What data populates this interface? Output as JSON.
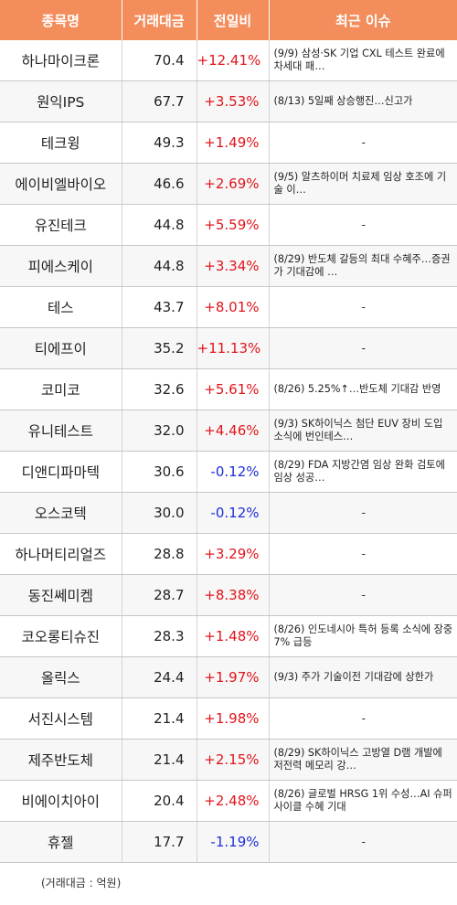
{
  "headers": [
    "종목명",
    "거래대금",
    "전일비",
    "최근 이슈"
  ],
  "rows": [
    {
      "name": "하나마이크론",
      "amount": "70.4",
      "change": "+12.41%",
      "dir": "up",
      "issue": "(9/9) 삼성·SK 기업 CXL 테스트 완료에 차세대 패…"
    },
    {
      "name": "원익IPS",
      "amount": "67.7",
      "change": "+3.53%",
      "dir": "up",
      "issue": "(8/13) 5일째 상승행진…신고가"
    },
    {
      "name": "테크윙",
      "amount": "49.3",
      "change": "+1.49%",
      "dir": "up",
      "issue": "-"
    },
    {
      "name": "에이비엘바이오",
      "amount": "46.6",
      "change": "+2.69%",
      "dir": "up",
      "issue": "(9/5) 알츠하이머 치료제 임상 호조에 기술 이…"
    },
    {
      "name": "유진테크",
      "amount": "44.8",
      "change": "+5.59%",
      "dir": "up",
      "issue": "-"
    },
    {
      "name": "피에스케이",
      "amount": "44.8",
      "change": "+3.34%",
      "dir": "up",
      "issue": "(8/29) 반도체 갈등의 최대 수혜주…증권가 기대감에 …"
    },
    {
      "name": "테스",
      "amount": "43.7",
      "change": "+8.01%",
      "dir": "up",
      "issue": "-"
    },
    {
      "name": "티에프이",
      "amount": "35.2",
      "change": "+11.13%",
      "dir": "up",
      "issue": "-"
    },
    {
      "name": "코미코",
      "amount": "32.6",
      "change": "+5.61%",
      "dir": "up",
      "issue": "(8/26) 5.25%↑…반도체 기대감 반영"
    },
    {
      "name": "유니테스트",
      "amount": "32.0",
      "change": "+4.46%",
      "dir": "up",
      "issue": "(9/3) SK하이닉스 첨단 EUV 장비 도입 소식에 번인테스…"
    },
    {
      "name": "디앤디파마텍",
      "amount": "30.6",
      "change": "-0.12%",
      "dir": "down",
      "issue": "(8/29) FDA 지방간염 임상 완화 검토에 임상 성공…"
    },
    {
      "name": "오스코텍",
      "amount": "30.0",
      "change": "-0.12%",
      "dir": "down",
      "issue": "-"
    },
    {
      "name": "하나머티리얼즈",
      "amount": "28.8",
      "change": "+3.29%",
      "dir": "up",
      "issue": "-"
    },
    {
      "name": "동진쎄미켐",
      "amount": "28.7",
      "change": "+8.38%",
      "dir": "up",
      "issue": "-"
    },
    {
      "name": "코오롱티슈진",
      "amount": "28.3",
      "change": "+1.48%",
      "dir": "up",
      "issue": "(8/26) 인도네시아 특허 등록 소식에 장중 7% 급등"
    },
    {
      "name": "올릭스",
      "amount": "24.4",
      "change": "+1.97%",
      "dir": "up",
      "issue": "(9/3) 주가 기술이전 기대감에 상한가"
    },
    {
      "name": "서진시스템",
      "amount": "21.4",
      "change": "+1.98%",
      "dir": "up",
      "issue": "-"
    },
    {
      "name": "제주반도체",
      "amount": "21.4",
      "change": "+2.15%",
      "dir": "up",
      "issue": "(8/29) SK하이닉스 고방열 D램 개발에 저전력 메모리 강…"
    },
    {
      "name": "비에이치아이",
      "amount": "20.4",
      "change": "+2.48%",
      "dir": "up",
      "issue": "(8/26) 글로벌 HRSG 1위 수성…AI 슈퍼사이클 수혜 기대"
    },
    {
      "name": "휴젤",
      "amount": "17.7",
      "change": "-1.19%",
      "dir": "down",
      "issue": "-"
    }
  ],
  "footnote": "(거래대금 : 억원)",
  "colors": {
    "header_bg": "#f38d5c",
    "up": "#e2141b",
    "down": "#1d2fd6",
    "alt_row": "#f7f7f7"
  }
}
